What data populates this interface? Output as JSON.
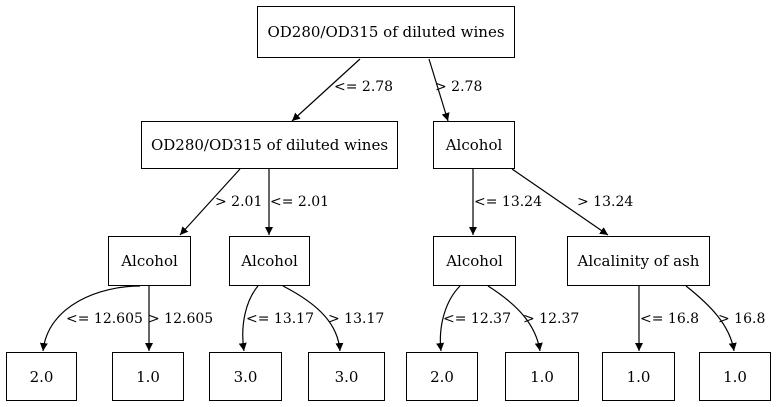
{
  "nodes": {
    "root": "OD280/OD315 of diluted wines",
    "l1_left": "OD280/OD315 of diluted wines",
    "l1_right": "Alcohol",
    "l2_a": "Alcohol",
    "l2_b": "Alcohol",
    "l2_c": "Alcohol",
    "l2_d": "Alcalinity of ash",
    "leaf_1": "2.0",
    "leaf_2": "1.0",
    "leaf_3": "3.0",
    "leaf_4": "3.0",
    "leaf_5": "2.0",
    "leaf_6": "1.0",
    "leaf_7": "1.0",
    "leaf_8": "1.0"
  },
  "edges": {
    "root_left": "<= 2.78",
    "root_right": "> 2.78",
    "l1l_left": "> 2.01",
    "l1l_right": "<= 2.01",
    "l1r_left": "<= 13.24",
    "l1r_right": "> 13.24",
    "a_left": "<= 12.605",
    "a_right": "> 12.605",
    "b_left": "<= 13.17",
    "b_right": "> 13.17",
    "c_left": "<= 12.37",
    "c_right": "> 12.37",
    "d_left": "<= 16.8",
    "d_right": "> 16.8"
  }
}
